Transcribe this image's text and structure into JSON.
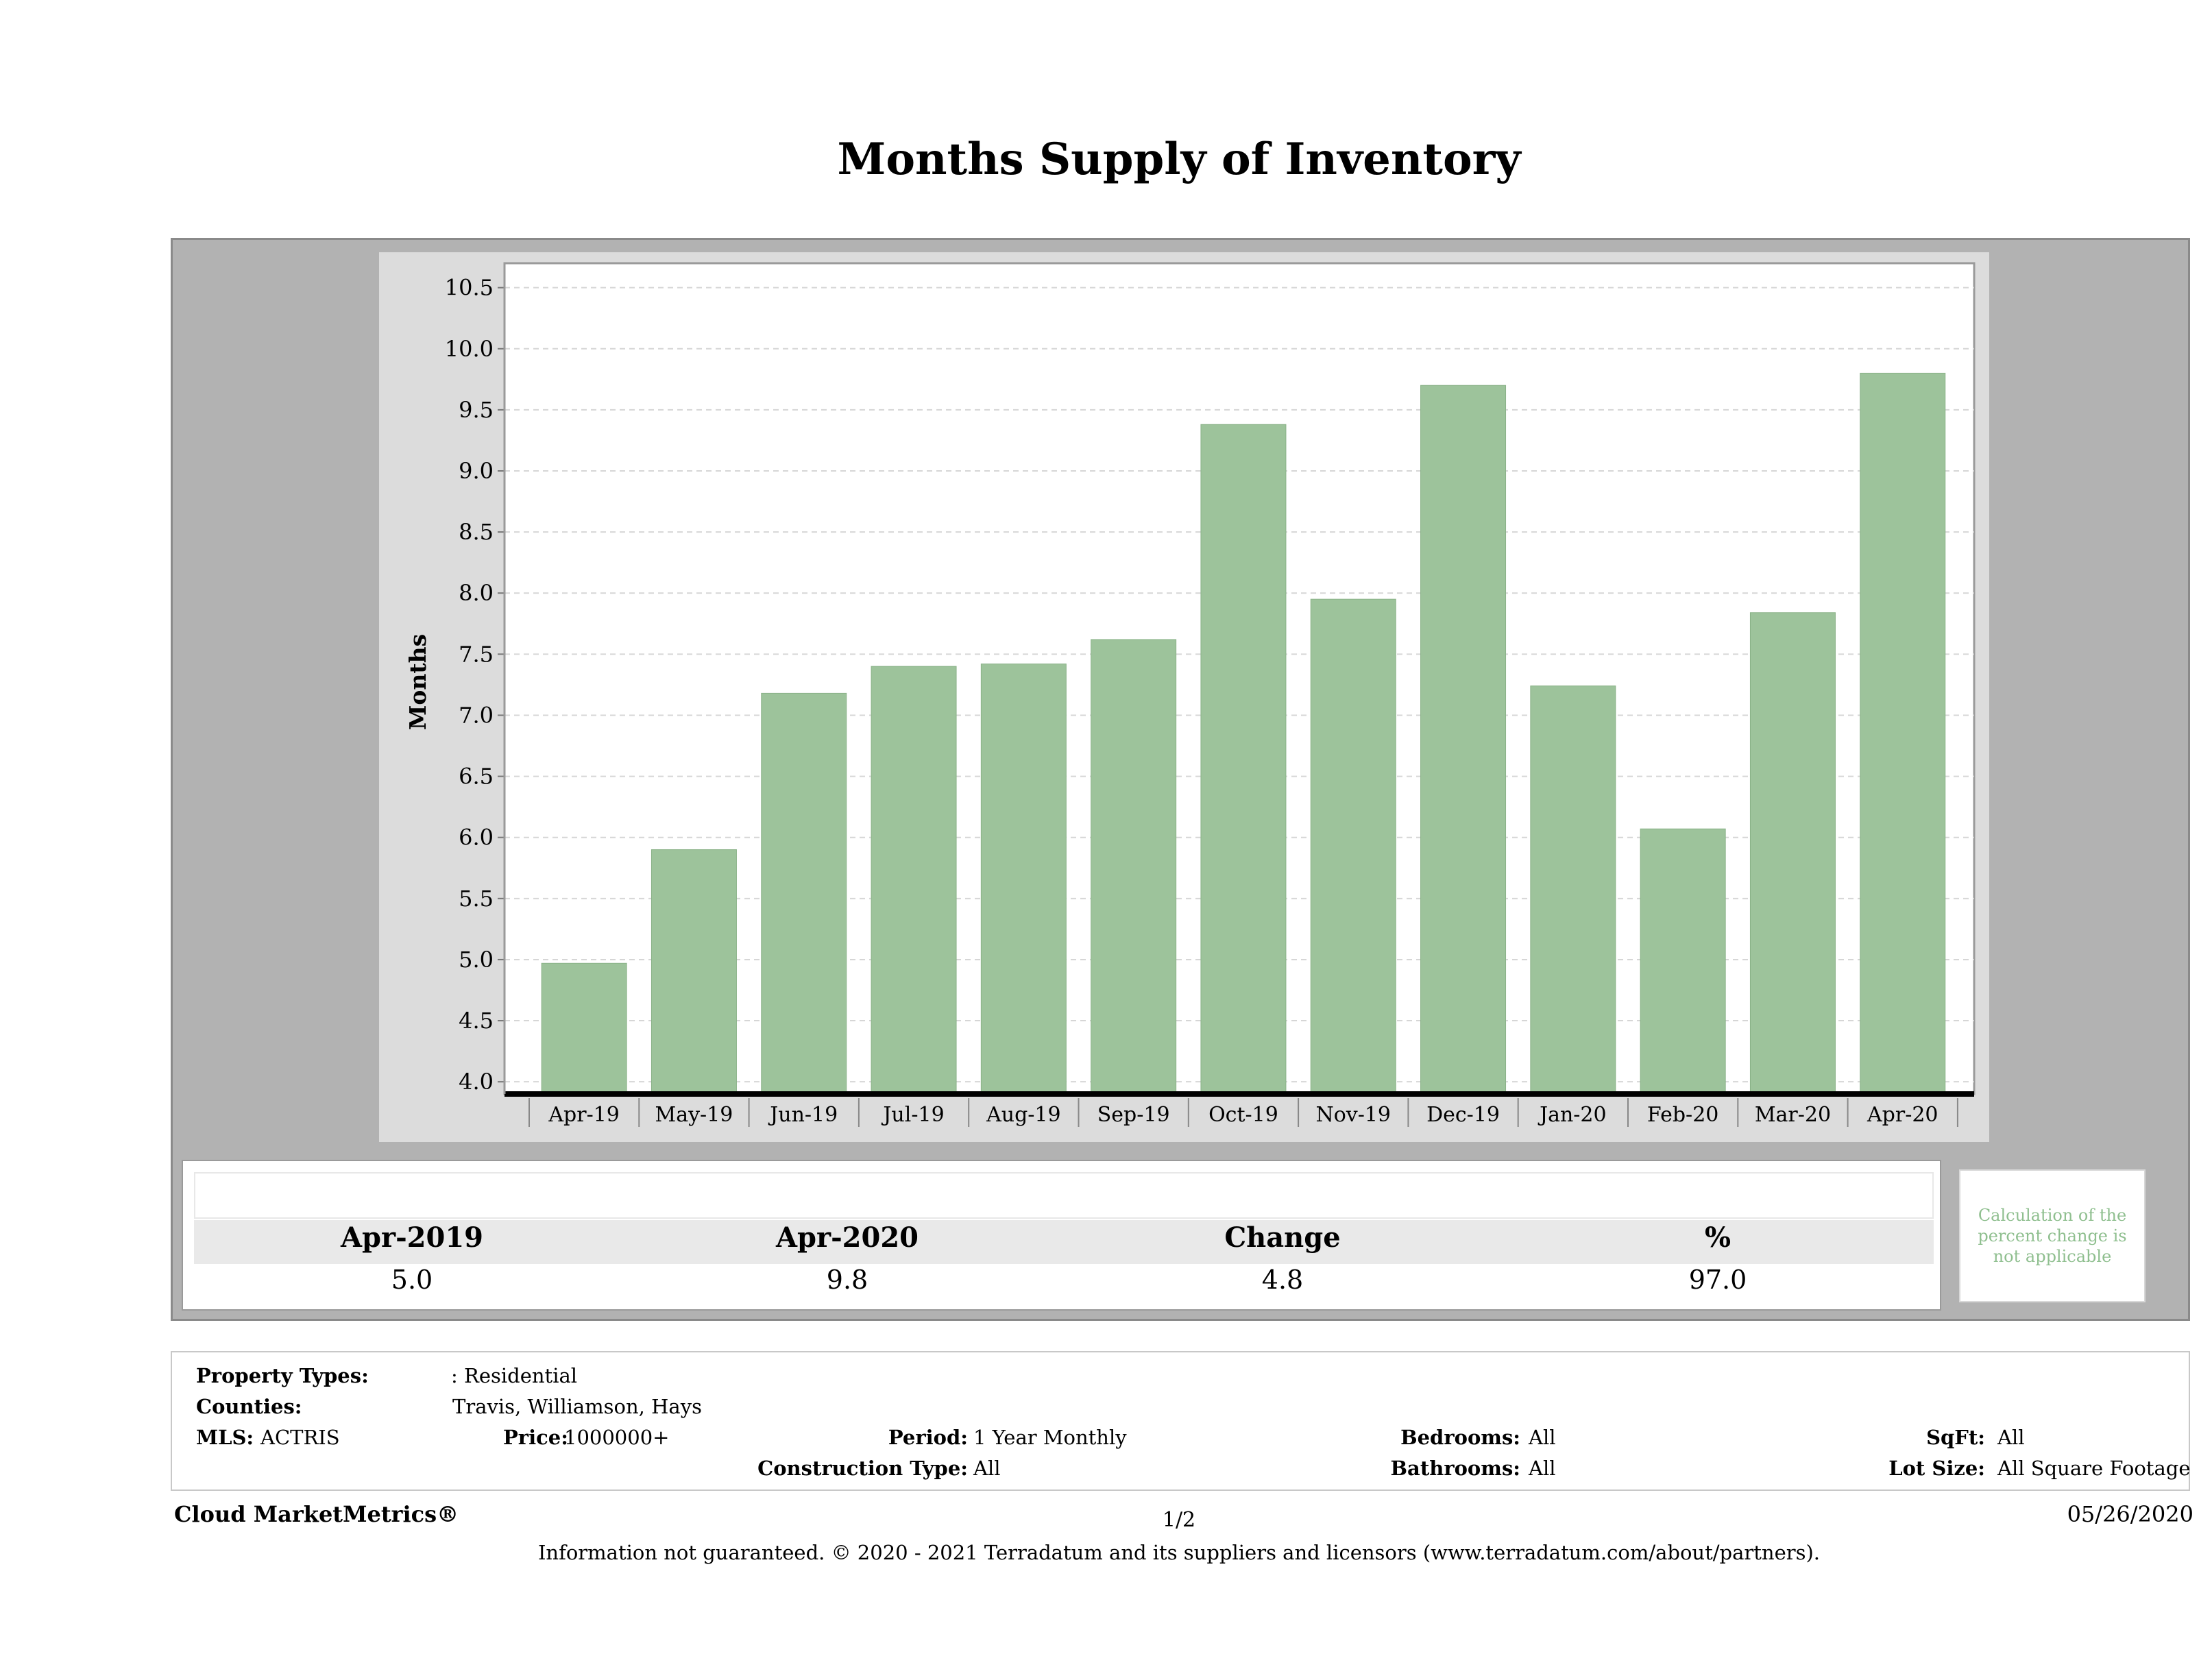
{
  "title": "Months Supply of Inventory",
  "chart_data": {
    "type": "bar",
    "title": "",
    "xlabel": "",
    "ylabel": "Months",
    "ylim": [
      3.9,
      10.7
    ],
    "grid": true,
    "yticks": [
      4.0,
      4.5,
      5.0,
      5.5,
      6.0,
      6.5,
      7.0,
      7.5,
      8.0,
      8.5,
      9.0,
      9.5,
      10.0,
      10.5
    ],
    "ytick_labels": [
      "4.0",
      "4.5",
      "5.0",
      "5.5",
      "6.0",
      "6.5",
      "7.0",
      "7.5",
      "8.0",
      "8.5",
      "9.0",
      "9.5",
      "10.0",
      "10.5"
    ],
    "categories": [
      "Apr-19",
      "May-19",
      "Jun-19",
      "Jul-19",
      "Aug-19",
      "Sep-19",
      "Oct-19",
      "Nov-19",
      "Dec-19",
      "Jan-20",
      "Feb-20",
      "Mar-20",
      "Apr-20"
    ],
    "values": [
      4.97,
      5.9,
      7.18,
      7.4,
      7.42,
      7.62,
      9.38,
      7.95,
      9.7,
      7.24,
      6.07,
      7.84,
      9.8
    ],
    "bar_color": "#9dc39b"
  },
  "summary": {
    "headers": [
      "Apr-2019",
      "Apr-2020",
      "Change",
      "%"
    ],
    "values": [
      "5.0",
      "9.8",
      "4.8",
      "97.0"
    ],
    "note": "Calculation of the percent change is not applicable"
  },
  "filters": {
    "property_types_label": "Property Types:",
    "property_types_value": ": Residential",
    "counties_label": "Counties:",
    "counties_value": "Travis, Williamson, Hays",
    "mls_label": "MLS:",
    "mls_value": "ACTRIS",
    "price_label": "Price:",
    "price_value": "1000000+",
    "period_label": "Period:",
    "period_value": "1 Year Monthly",
    "construction_label": "Construction Type:",
    "construction_value": "All",
    "bedrooms_label": "Bedrooms:",
    "bedrooms_value": "All",
    "bathrooms_label": "Bathrooms:",
    "bathrooms_value": "All",
    "sqft_label": "SqFt:",
    "sqft_value": "All",
    "lot_label": "Lot Size:",
    "lot_value": "All Square Footage"
  },
  "footer": {
    "brand": "Cloud MarketMetrics®",
    "page": "1/2",
    "date": "05/26/2020",
    "disclaimer": "Information not guaranteed. © 2020 - 2021 Terradatum and its suppliers and licensors (www.terradatum.com/about/partners)."
  }
}
